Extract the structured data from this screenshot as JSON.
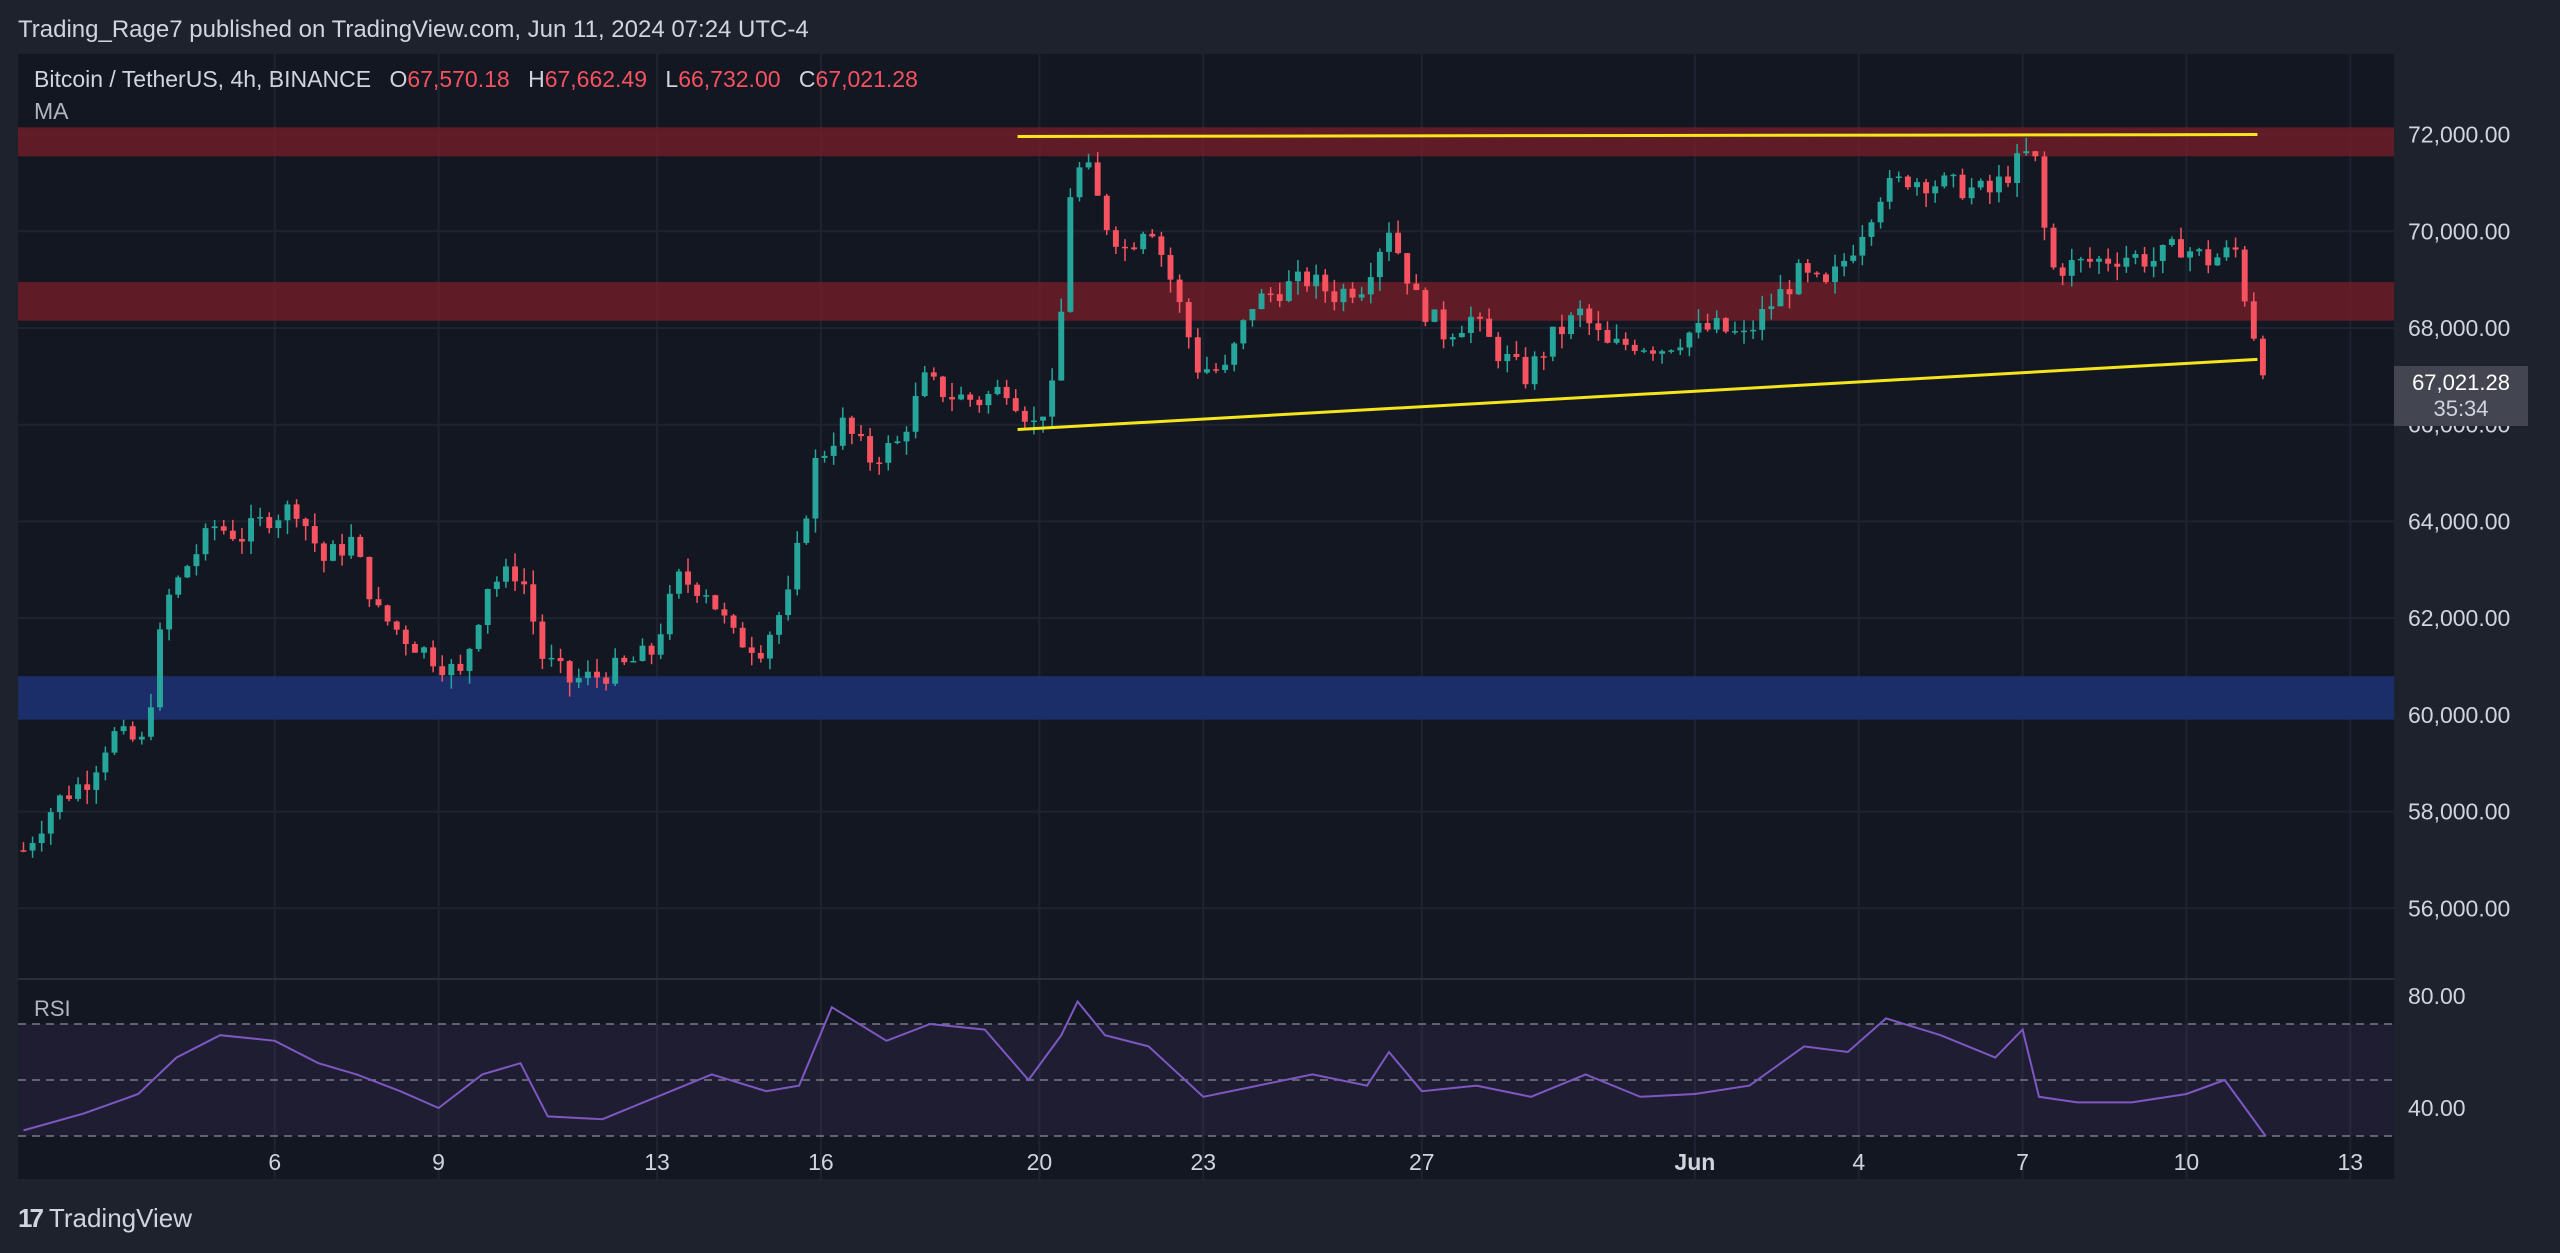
{
  "header": {
    "published": "Trading_Rage7 published on TradingView.com, Jun 11, 2024 07:24 UTC-4"
  },
  "symbol": {
    "name": "Bitcoin / TetherUS, 4h, BINANCE",
    "o_label": "O",
    "o_value": "67,570.18",
    "h_label": "H",
    "h_value": "67,662.49",
    "l_label": "L",
    "l_value": "66,732.00",
    "c_label": "C",
    "c_value": "67,021.28"
  },
  "indicators": {
    "ma": "MA",
    "rsi": "RSI"
  },
  "price_tag": {
    "price": "67,021.28",
    "countdown": "35:34"
  },
  "footer": {
    "brand": "TradingView",
    "logo_text": "17"
  },
  "colors": {
    "up": "#26a69a",
    "down": "#f7525f",
    "yellow": "#f5e51b",
    "resistance_zone": "#7a1f2a",
    "support_zone": "#1c2f6e",
    "rsi_line": "#7e57c2"
  },
  "chart_data": {
    "type": "candlestick",
    "title": "Bitcoin / TetherUS, 4h, BINANCE",
    "y_axis": {
      "ticks": [
        56000,
        58000,
        60000,
        62000,
        64000,
        66000,
        68000,
        70000,
        72000
      ],
      "tick_labels": [
        "56,000.00",
        "58,000.00",
        "60,000.00",
        "62,000.00",
        "64,000.00",
        "66,000.00",
        "68,000.00",
        "70,000.00",
        "72,000.00"
      ],
      "range": [
        54600,
        73500
      ]
    },
    "x_axis": {
      "tick_labels": [
        "6",
        "9",
        "13",
        "16",
        "20",
        "23",
        "27",
        "Jun",
        "4",
        "7",
        "10",
        "13"
      ],
      "tick_days": [
        6,
        9,
        13,
        16,
        20,
        23,
        27,
        32,
        35,
        38,
        41,
        44
      ],
      "range_days": [
        1.3,
        44.8
      ]
    },
    "close_path": [
      [
        1.4,
        57200
      ],
      [
        2.0,
        58200
      ],
      [
        2.6,
        58700
      ],
      [
        3.0,
        59600
      ],
      [
        3.6,
        59400
      ],
      [
        4.0,
        62300
      ],
      [
        4.4,
        63100
      ],
      [
        4.9,
        63900
      ],
      [
        5.4,
        63700
      ],
      [
        5.9,
        64100
      ],
      [
        6.4,
        64300
      ],
      [
        6.9,
        63200
      ],
      [
        7.4,
        63600
      ],
      [
        7.9,
        62100
      ],
      [
        8.4,
        61600
      ],
      [
        8.9,
        61200
      ],
      [
        9.4,
        60800
      ],
      [
        9.9,
        62700
      ],
      [
        10.5,
        63000
      ],
      [
        10.9,
        61200
      ],
      [
        11.4,
        60700
      ],
      [
        11.9,
        60800
      ],
      [
        12.4,
        61000
      ],
      [
        12.9,
        61300
      ],
      [
        13.4,
        62800
      ],
      [
        13.9,
        62600
      ],
      [
        14.4,
        61600
      ],
      [
        14.9,
        61400
      ],
      [
        15.4,
        62400
      ],
      [
        15.9,
        65200
      ],
      [
        16.4,
        66000
      ],
      [
        16.9,
        65300
      ],
      [
        17.4,
        65600
      ],
      [
        17.9,
        66900
      ],
      [
        18.4,
        66600
      ],
      [
        18.9,
        66500
      ],
      [
        19.4,
        66800
      ],
      [
        19.9,
        66000
      ],
      [
        20.3,
        66800
      ],
      [
        20.6,
        71300
      ],
      [
        20.9,
        71200
      ],
      [
        21.2,
        70200
      ],
      [
        21.6,
        69600
      ],
      [
        22.0,
        70300
      ],
      [
        22.5,
        68700
      ],
      [
        22.9,
        67200
      ],
      [
        23.4,
        67100
      ],
      [
        23.9,
        68500
      ],
      [
        24.4,
        68800
      ],
      [
        24.9,
        69000
      ],
      [
        25.4,
        68700
      ],
      [
        25.9,
        68900
      ],
      [
        26.4,
        70100
      ],
      [
        26.9,
        68600
      ],
      [
        27.4,
        67900
      ],
      [
        27.9,
        68200
      ],
      [
        28.4,
        67500
      ],
      [
        28.9,
        67000
      ],
      [
        29.4,
        67800
      ],
      [
        29.9,
        68300
      ],
      [
        30.4,
        67600
      ],
      [
        30.9,
        67700
      ],
      [
        31.4,
        67600
      ],
      [
        31.9,
        67900
      ],
      [
        32.4,
        68000
      ],
      [
        32.9,
        67800
      ],
      [
        33.4,
        68500
      ],
      [
        33.9,
        69100
      ],
      [
        34.4,
        68800
      ],
      [
        34.9,
        69700
      ],
      [
        35.4,
        70800
      ],
      [
        35.9,
        71100
      ],
      [
        36.4,
        71000
      ],
      [
        36.9,
        70900
      ],
      [
        37.4,
        70800
      ],
      [
        37.9,
        71400
      ],
      [
        38.2,
        71700
      ],
      [
        38.5,
        69200
      ],
      [
        38.9,
        69300
      ],
      [
        39.4,
        69400
      ],
      [
        39.9,
        69500
      ],
      [
        40.4,
        69400
      ],
      [
        40.9,
        69700
      ],
      [
        41.4,
        69400
      ],
      [
        41.9,
        69600
      ],
      [
        42.1,
        68500
      ],
      [
        42.3,
        67600
      ],
      [
        42.45,
        67021
      ]
    ],
    "zones": [
      {
        "kind": "resistance",
        "y_range": [
          71550,
          72150
        ]
      },
      {
        "kind": "resistance",
        "y_range": [
          68150,
          68950
        ]
      },
      {
        "kind": "support",
        "y_range": [
          59900,
          60800
        ]
      }
    ],
    "trendlines": [
      {
        "kind": "resistance",
        "points": [
          [
            19.6,
            71960
          ],
          [
            42.3,
            72000
          ]
        ]
      },
      {
        "kind": "support",
        "points": [
          [
            19.6,
            65900
          ],
          [
            42.3,
            67350
          ]
        ]
      }
    ],
    "rsi": {
      "ticks": [
        40,
        80
      ],
      "tick_labels": [
        "40.00",
        "80.00"
      ],
      "bands": [
        30,
        50,
        70
      ],
      "range": [
        25,
        85
      ],
      "path": [
        [
          1.4,
          32
        ],
        [
          2.5,
          38
        ],
        [
          3.5,
          45
        ],
        [
          4.2,
          58
        ],
        [
          5.0,
          66
        ],
        [
          6.0,
          64
        ],
        [
          6.8,
          56
        ],
        [
          7.5,
          52
        ],
        [
          8.3,
          46
        ],
        [
          9.0,
          40
        ],
        [
          9.8,
          52
        ],
        [
          10.5,
          56
        ],
        [
          11.0,
          37
        ],
        [
          12.0,
          36
        ],
        [
          13.0,
          44
        ],
        [
          14.0,
          52
        ],
        [
          15.0,
          46
        ],
        [
          15.6,
          48
        ],
        [
          16.2,
          76
        ],
        [
          17.2,
          64
        ],
        [
          18.0,
          70
        ],
        [
          19.0,
          68
        ],
        [
          19.8,
          50
        ],
        [
          20.4,
          66
        ],
        [
          20.7,
          78
        ],
        [
          21.2,
          66
        ],
        [
          22.0,
          62
        ],
        [
          23.0,
          44
        ],
        [
          24.0,
          48
        ],
        [
          25.0,
          52
        ],
        [
          26.0,
          48
        ],
        [
          26.4,
          60
        ],
        [
          27.0,
          46
        ],
        [
          28.0,
          48
        ],
        [
          29.0,
          44
        ],
        [
          30.0,
          52
        ],
        [
          31.0,
          44
        ],
        [
          32.0,
          45
        ],
        [
          33.0,
          48
        ],
        [
          34.0,
          62
        ],
        [
          34.8,
          60
        ],
        [
          35.5,
          72
        ],
        [
          36.5,
          66
        ],
        [
          37.5,
          58
        ],
        [
          38.0,
          68
        ],
        [
          38.3,
          44
        ],
        [
          39.0,
          42
        ],
        [
          40.0,
          42
        ],
        [
          41.0,
          45
        ],
        [
          41.7,
          50
        ],
        [
          42.0,
          42
        ],
        [
          42.45,
          30
        ]
      ]
    }
  }
}
